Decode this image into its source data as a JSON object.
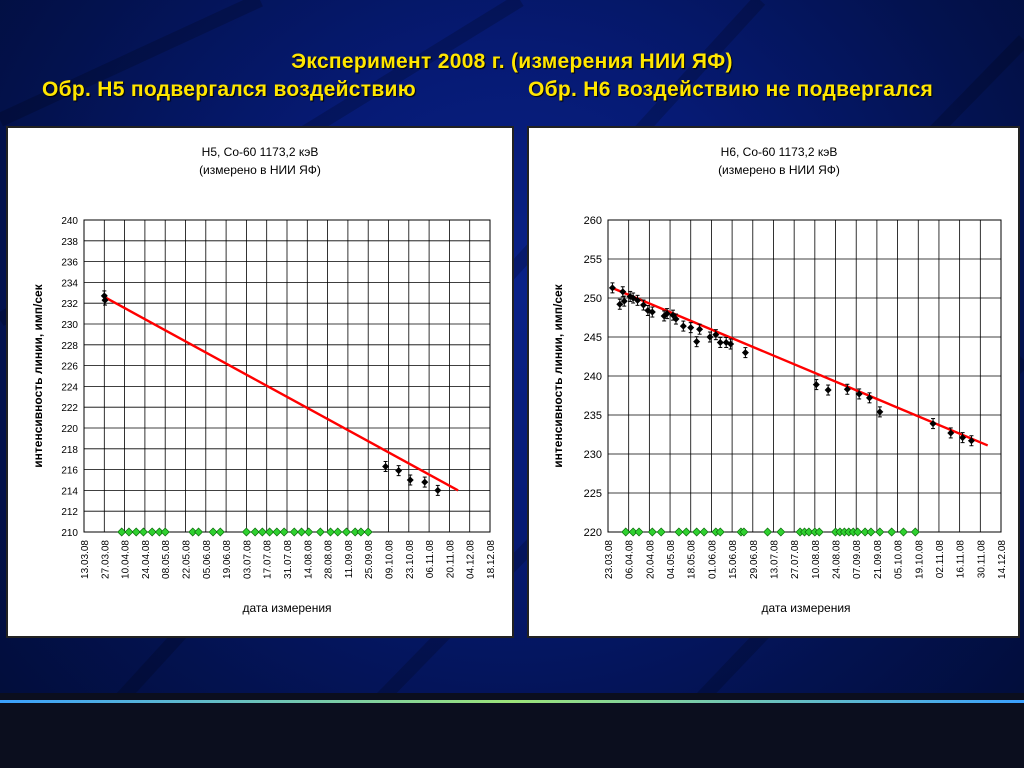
{
  "slide": {
    "title_line1": "Эксперимент 2008 г. (измерения НИИ ЯФ)",
    "title_left": "Обр. Н5 подвергался воздействию",
    "title_right": "Обр. Н6 воздействию не подвергался",
    "colors": {
      "title": "#ffe600",
      "background": "#061a74",
      "fit_line": "#ff0000",
      "marker_black": "#000000",
      "marker_green": "#2fd12f"
    }
  },
  "chart_data": [
    {
      "type": "scatter",
      "title": "Н5, Со-60 1173,2 кэВ",
      "subtitle": "(измерено в НИИ ЯФ)",
      "xlabel": "дата измерения",
      "ylabel": "интенсивность линии, имп/сек",
      "ylim": [
        210,
        240
      ],
      "yticks": [
        "240",
        "238",
        "236",
        "234",
        "232",
        "230",
        "228",
        "226",
        "224",
        "222",
        "220",
        "218",
        "216",
        "214",
        "212",
        "210"
      ],
      "xticks": [
        "13.03.08",
        "27.03.08",
        "10.04.08",
        "24.04.08",
        "08.05.08",
        "22.05.08",
        "05.06.08",
        "19.06.08",
        "03.07.08",
        "17.07.08",
        "31.07.08",
        "14.08.08",
        "28.08.08",
        "11.09.08",
        "25.09.08",
        "09.10.08",
        "23.10.08",
        "06.11.08",
        "20.11.08",
        "04.12.08",
        "18.12.08"
      ],
      "grid": true,
      "series": [
        {
          "values": [
            [
              14.0,
              232.7
            ],
            [
              14.5,
              232.3
            ],
            [
              208,
              216.3
            ],
            [
              217,
              215.9
            ],
            [
              225,
              215.0
            ],
            [
              235,
              214.8
            ],
            [
              244,
              214.0
            ]
          ]
        },
        {
          "values": [
            [
              26,
              210
            ],
            [
              31,
              210
            ],
            [
              36,
              210
            ],
            [
              41,
              210
            ],
            [
              47,
              210
            ],
            [
              52,
              210
            ],
            [
              56,
              210
            ],
            [
              75,
              210
            ],
            [
              79,
              210
            ],
            [
              89,
              210
            ],
            [
              94,
              210
            ],
            [
              112,
              210
            ],
            [
              118,
              210
            ],
            [
              123,
              210
            ],
            [
              128,
              210
            ],
            [
              133,
              210
            ],
            [
              138,
              210
            ],
            [
              145,
              210
            ],
            [
              150,
              210
            ],
            [
              155,
              210
            ],
            [
              163,
              210
            ],
            [
              170,
              210
            ],
            [
              175,
              210
            ],
            [
              181,
              210
            ],
            [
              187,
              210
            ],
            [
              191,
              210
            ],
            [
              196,
              210
            ]
          ]
        },
        {
          "values": [
            [
              14,
              232.6
            ],
            [
              258,
              214.0
            ]
          ]
        }
      ]
    },
    {
      "type": "scatter",
      "title": "Н6, Со-60 1173,2 кэВ",
      "subtitle": "(измерено в НИИ ЯФ)",
      "xlabel": "дата измерения",
      "ylabel": "интенсивность линии, имп/сек",
      "ylim": [
        220,
        260
      ],
      "yticks": [
        "260",
        "255",
        "250",
        "245",
        "240",
        "235",
        "230",
        "225",
        "220"
      ],
      "xticks": [
        "23.03.08",
        "06.04.08",
        "20.04.08",
        "04.05.08",
        "18.05.08",
        "01.06.08",
        "15.06.08",
        "29.06.08",
        "13.07.08",
        "27.07.08",
        "10.08.08",
        "24.08.08",
        "07.09.08",
        "21.09.08",
        "05.10.08",
        "19.10.08",
        "02.11.08",
        "16.11.08",
        "30.11.08",
        "14.12.08"
      ],
      "grid": true,
      "series": [
        {
          "values": [
            [
              3,
              251.3
            ],
            [
              8,
              249.2
            ],
            [
              10,
              250.8
            ],
            [
              11,
              249.6
            ],
            [
              15,
              250.2
            ],
            [
              17,
              250.0
            ],
            [
              20,
              249.7
            ],
            [
              24,
              249.1
            ],
            [
              27,
              248.4
            ],
            [
              30,
              248.2
            ],
            [
              38,
              247.7
            ],
            [
              40,
              248.0
            ],
            [
              44,
              247.8
            ],
            [
              46,
              247.3
            ],
            [
              51,
              246.4
            ],
            [
              56,
              246.2
            ],
            [
              60,
              244.4
            ],
            [
              62,
              246.0
            ],
            [
              69,
              245.0
            ],
            [
              73,
              245.3
            ],
            [
              76,
              244.3
            ],
            [
              80,
              244.3
            ],
            [
              83,
              244.1
            ],
            [
              93,
              243.0
            ],
            [
              141,
              238.9
            ],
            [
              149,
              238.2
            ],
            [
              162,
              238.3
            ],
            [
              170,
              237.7
            ],
            [
              177,
              237.2
            ],
            [
              184,
              235.4
            ],
            [
              220,
              233.9
            ],
            [
              232,
              232.7
            ],
            [
              240,
              232.1
            ],
            [
              246,
              231.7
            ]
          ]
        },
        {
          "values": [
            [
              12,
              220
            ],
            [
              17,
              220
            ],
            [
              21,
              220
            ],
            [
              30,
              220
            ],
            [
              36,
              220
            ],
            [
              48,
              220
            ],
            [
              53,
              220
            ],
            [
              60,
              220
            ],
            [
              65,
              220
            ],
            [
              73,
              220
            ],
            [
              76,
              220
            ],
            [
              90,
              220
            ],
            [
              92,
              220
            ],
            [
              108,
              220
            ],
            [
              117,
              220
            ],
            [
              130,
              220
            ],
            [
              133,
              220
            ],
            [
              136,
              220
            ],
            [
              140,
              220
            ],
            [
              143,
              220
            ],
            [
              154,
              220
            ],
            [
              157,
              220
            ],
            [
              160,
              220
            ],
            [
              163,
              220
            ],
            [
              166,
              220
            ],
            [
              169,
              220
            ],
            [
              174,
              220
            ],
            [
              178,
              220
            ],
            [
              184,
              220
            ],
            [
              192,
              220
            ],
            [
              200,
              220
            ],
            [
              208,
              220
            ]
          ]
        },
        {
          "values": [
            [
              4,
              251.2
            ],
            [
              257,
              231.1
            ]
          ]
        }
      ]
    }
  ]
}
